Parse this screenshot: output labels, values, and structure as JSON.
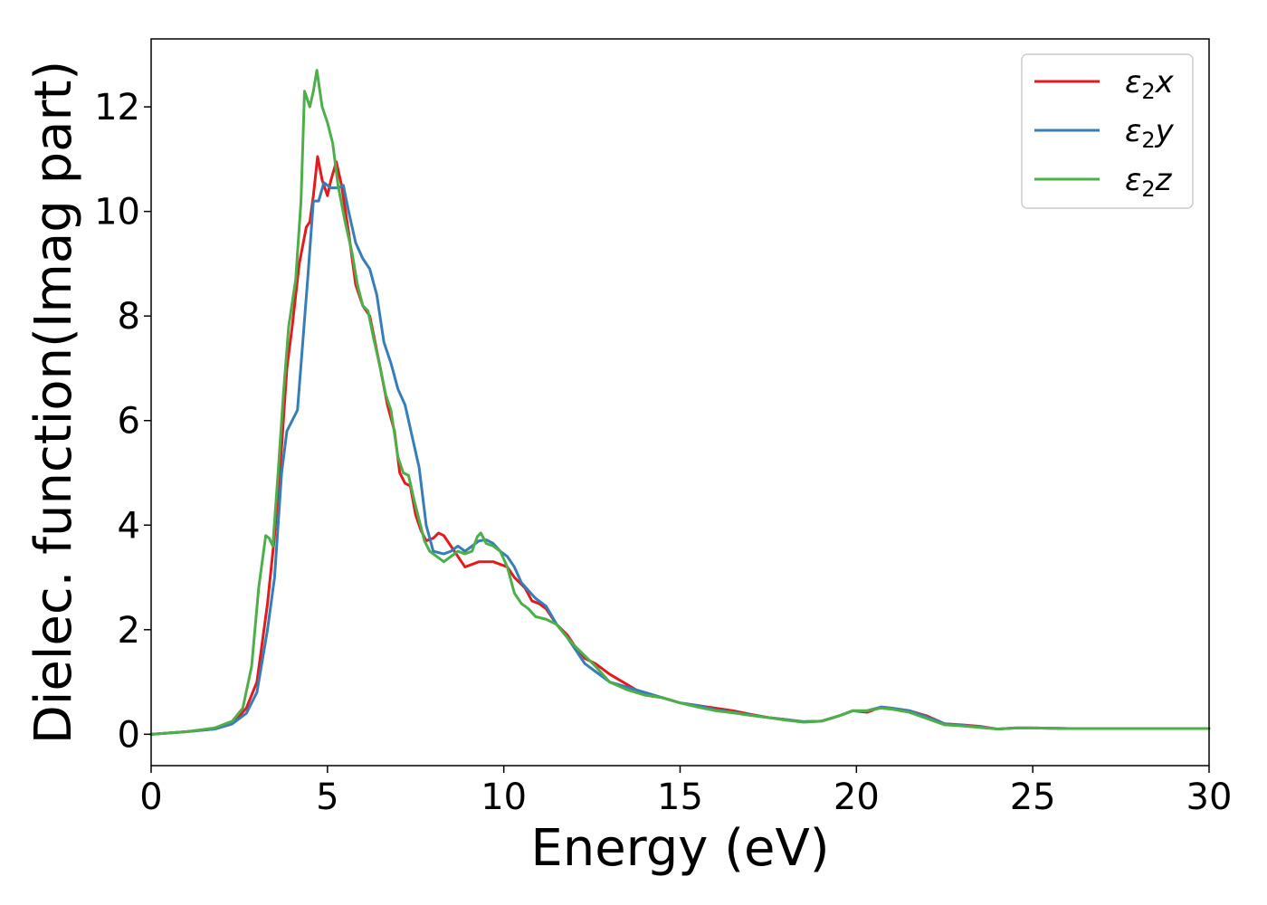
{
  "chart_data": {
    "type": "line",
    "xlabel": "Energy (eV)",
    "ylabel": "Dielec. function(Imag part)",
    "xlim": [
      0,
      30
    ],
    "ylim": [
      -0.6,
      13.3
    ],
    "xticks": [
      0,
      5,
      10,
      15,
      20,
      25,
      30
    ],
    "yticks": [
      0,
      2,
      4,
      6,
      8,
      10,
      12
    ],
    "grid": false,
    "legend_position": "top-right",
    "series": [
      {
        "name": "ε₂x",
        "legend_base": "ε",
        "legend_sub": "2",
        "legend_var": "x",
        "color": "#e41a1c",
        "points": [
          [
            0,
            0
          ],
          [
            1,
            0.05
          ],
          [
            1.8,
            0.1
          ],
          [
            2.3,
            0.2
          ],
          [
            2.7,
            0.5
          ],
          [
            3.0,
            1.0
          ],
          [
            3.3,
            2.5
          ],
          [
            3.5,
            3.8
          ],
          [
            3.7,
            5.5
          ],
          [
            3.85,
            7.0
          ],
          [
            4.0,
            7.8
          ],
          [
            4.2,
            9.0
          ],
          [
            4.4,
            9.7
          ],
          [
            4.5,
            9.8
          ],
          [
            4.6,
            10.3
          ],
          [
            4.72,
            11.05
          ],
          [
            4.85,
            10.6
          ],
          [
            5.0,
            10.3
          ],
          [
            5.1,
            10.6
          ],
          [
            5.25,
            10.95
          ],
          [
            5.4,
            10.5
          ],
          [
            5.6,
            9.6
          ],
          [
            5.8,
            8.6
          ],
          [
            6.0,
            8.2
          ],
          [
            6.2,
            8.0
          ],
          [
            6.35,
            7.5
          ],
          [
            6.5,
            7.0
          ],
          [
            6.7,
            6.3
          ],
          [
            6.9,
            5.8
          ],
          [
            7.05,
            5.0
          ],
          [
            7.2,
            4.8
          ],
          [
            7.35,
            4.75
          ],
          [
            7.5,
            4.2
          ],
          [
            7.65,
            3.9
          ],
          [
            7.8,
            3.7
          ],
          [
            8.0,
            3.75
          ],
          [
            8.15,
            3.85
          ],
          [
            8.3,
            3.8
          ],
          [
            8.5,
            3.6
          ],
          [
            8.7,
            3.4
          ],
          [
            8.9,
            3.2
          ],
          [
            9.1,
            3.25
          ],
          [
            9.3,
            3.3
          ],
          [
            9.5,
            3.3
          ],
          [
            9.7,
            3.3
          ],
          [
            9.9,
            3.25
          ],
          [
            10.1,
            3.2
          ],
          [
            10.3,
            3.0
          ],
          [
            10.6,
            2.8
          ],
          [
            10.8,
            2.55
          ],
          [
            11.0,
            2.5
          ],
          [
            11.2,
            2.4
          ],
          [
            11.5,
            2.1
          ],
          [
            11.8,
            1.9
          ],
          [
            12.0,
            1.7
          ],
          [
            12.3,
            1.45
          ],
          [
            12.6,
            1.35
          ],
          [
            13.0,
            1.15
          ],
          [
            13.5,
            0.95
          ],
          [
            14.0,
            0.75
          ],
          [
            14.5,
            0.7
          ],
          [
            15.0,
            0.6
          ],
          [
            15.5,
            0.55
          ],
          [
            16.0,
            0.5
          ],
          [
            16.5,
            0.45
          ],
          [
            17.0,
            0.38
          ],
          [
            17.5,
            0.32
          ],
          [
            18.0,
            0.28
          ],
          [
            18.5,
            0.24
          ],
          [
            19.0,
            0.25
          ],
          [
            19.5,
            0.35
          ],
          [
            19.9,
            0.45
          ],
          [
            20.3,
            0.42
          ],
          [
            20.7,
            0.52
          ],
          [
            21.0,
            0.5
          ],
          [
            21.5,
            0.45
          ],
          [
            22.0,
            0.35
          ],
          [
            22.5,
            0.2
          ],
          [
            23.0,
            0.18
          ],
          [
            23.5,
            0.15
          ],
          [
            24.0,
            0.1
          ],
          [
            24.5,
            0.12
          ],
          [
            25.0,
            0.12
          ],
          [
            26.0,
            0.11
          ],
          [
            27.0,
            0.11
          ],
          [
            28.0,
            0.11
          ],
          [
            29.0,
            0.11
          ],
          [
            30.0,
            0.11
          ]
        ]
      },
      {
        "name": "ε₂y",
        "legend_base": "ε",
        "legend_sub": "2",
        "legend_var": "y",
        "color": "#377eb8",
        "points": [
          [
            0,
            0
          ],
          [
            1,
            0.05
          ],
          [
            1.8,
            0.1
          ],
          [
            2.3,
            0.2
          ],
          [
            2.7,
            0.4
          ],
          [
            3.0,
            0.8
          ],
          [
            3.3,
            2.0
          ],
          [
            3.5,
            3.0
          ],
          [
            3.7,
            5.0
          ],
          [
            3.85,
            5.8
          ],
          [
            4.0,
            6.0
          ],
          [
            4.15,
            6.2
          ],
          [
            4.3,
            7.5
          ],
          [
            4.45,
            8.8
          ],
          [
            4.6,
            10.2
          ],
          [
            4.75,
            10.2
          ],
          [
            4.9,
            10.55
          ],
          [
            5.1,
            10.45
          ],
          [
            5.3,
            10.45
          ],
          [
            5.45,
            10.5
          ],
          [
            5.6,
            10.0
          ],
          [
            5.8,
            9.4
          ],
          [
            6.0,
            9.1
          ],
          [
            6.2,
            8.9
          ],
          [
            6.4,
            8.4
          ],
          [
            6.6,
            7.5
          ],
          [
            6.8,
            7.1
          ],
          [
            7.0,
            6.6
          ],
          [
            7.2,
            6.3
          ],
          [
            7.4,
            5.7
          ],
          [
            7.6,
            5.1
          ],
          [
            7.8,
            4.0
          ],
          [
            8.0,
            3.5
          ],
          [
            8.3,
            3.45
          ],
          [
            8.5,
            3.5
          ],
          [
            8.7,
            3.6
          ],
          [
            8.9,
            3.5
          ],
          [
            9.1,
            3.6
          ],
          [
            9.3,
            3.7
          ],
          [
            9.5,
            3.72
          ],
          [
            9.7,
            3.65
          ],
          [
            9.9,
            3.5
          ],
          [
            10.1,
            3.4
          ],
          [
            10.3,
            3.2
          ],
          [
            10.5,
            2.9
          ],
          [
            10.7,
            2.75
          ],
          [
            10.9,
            2.6
          ],
          [
            11.2,
            2.45
          ],
          [
            11.5,
            2.1
          ],
          [
            11.8,
            1.85
          ],
          [
            12.0,
            1.65
          ],
          [
            12.3,
            1.35
          ],
          [
            12.6,
            1.2
          ],
          [
            13.0,
            1.0
          ],
          [
            13.5,
            0.9
          ],
          [
            14.0,
            0.8
          ],
          [
            14.5,
            0.7
          ],
          [
            15.0,
            0.6
          ],
          [
            15.5,
            0.55
          ],
          [
            16.0,
            0.47
          ],
          [
            16.5,
            0.42
          ],
          [
            17.0,
            0.37
          ],
          [
            17.5,
            0.32
          ],
          [
            18.0,
            0.28
          ],
          [
            18.5,
            0.24
          ],
          [
            19.0,
            0.25
          ],
          [
            19.5,
            0.35
          ],
          [
            19.9,
            0.45
          ],
          [
            20.3,
            0.45
          ],
          [
            20.7,
            0.52
          ],
          [
            21.0,
            0.5
          ],
          [
            21.5,
            0.45
          ],
          [
            22.0,
            0.33
          ],
          [
            22.5,
            0.2
          ],
          [
            23.0,
            0.17
          ],
          [
            23.5,
            0.14
          ],
          [
            24.0,
            0.1
          ],
          [
            24.5,
            0.12
          ],
          [
            25.0,
            0.12
          ],
          [
            26.0,
            0.11
          ],
          [
            27.0,
            0.11
          ],
          [
            28.0,
            0.11
          ],
          [
            29.0,
            0.11
          ],
          [
            30.0,
            0.11
          ]
        ]
      },
      {
        "name": "ε₂z",
        "legend_base": "ε",
        "legend_sub": "2",
        "legend_var": "z",
        "color": "#4daf4a",
        "points": [
          [
            0,
            0
          ],
          [
            1,
            0.05
          ],
          [
            1.8,
            0.12
          ],
          [
            2.3,
            0.25
          ],
          [
            2.6,
            0.5
          ],
          [
            2.85,
            1.3
          ],
          [
            3.05,
            2.8
          ],
          [
            3.25,
            3.8
          ],
          [
            3.35,
            3.75
          ],
          [
            3.45,
            3.6
          ],
          [
            3.6,
            5.0
          ],
          [
            3.75,
            6.5
          ],
          [
            3.9,
            7.8
          ],
          [
            4.1,
            8.7
          ],
          [
            4.25,
            10.2
          ],
          [
            4.35,
            12.3
          ],
          [
            4.5,
            12.0
          ],
          [
            4.6,
            12.3
          ],
          [
            4.7,
            12.7
          ],
          [
            4.85,
            12.0
          ],
          [
            5.0,
            11.7
          ],
          [
            5.15,
            11.3
          ],
          [
            5.3,
            10.5
          ],
          [
            5.5,
            9.8
          ],
          [
            5.7,
            9.2
          ],
          [
            5.85,
            8.6
          ],
          [
            6.0,
            8.2
          ],
          [
            6.15,
            8.1
          ],
          [
            6.3,
            7.6
          ],
          [
            6.5,
            7.0
          ],
          [
            6.65,
            6.5
          ],
          [
            6.8,
            6.2
          ],
          [
            7.0,
            5.3
          ],
          [
            7.15,
            5.0
          ],
          [
            7.3,
            4.95
          ],
          [
            7.45,
            4.5
          ],
          [
            7.6,
            4.1
          ],
          [
            7.75,
            3.7
          ],
          [
            7.9,
            3.5
          ],
          [
            8.1,
            3.4
          ],
          [
            8.3,
            3.3
          ],
          [
            8.5,
            3.4
          ],
          [
            8.7,
            3.5
          ],
          [
            8.9,
            3.45
          ],
          [
            9.1,
            3.5
          ],
          [
            9.25,
            3.78
          ],
          [
            9.35,
            3.85
          ],
          [
            9.5,
            3.65
          ],
          [
            9.7,
            3.6
          ],
          [
            9.9,
            3.5
          ],
          [
            10.1,
            3.2
          ],
          [
            10.3,
            2.7
          ],
          [
            10.5,
            2.5
          ],
          [
            10.7,
            2.4
          ],
          [
            10.9,
            2.25
          ],
          [
            11.2,
            2.2
          ],
          [
            11.5,
            2.1
          ],
          [
            11.8,
            1.85
          ],
          [
            12.0,
            1.7
          ],
          [
            12.3,
            1.5
          ],
          [
            12.6,
            1.3
          ],
          [
            13.0,
            1.0
          ],
          [
            13.5,
            0.85
          ],
          [
            14.0,
            0.75
          ],
          [
            14.5,
            0.7
          ],
          [
            15.0,
            0.6
          ],
          [
            15.5,
            0.52
          ],
          [
            16.0,
            0.45
          ],
          [
            16.5,
            0.41
          ],
          [
            17.0,
            0.36
          ],
          [
            17.5,
            0.32
          ],
          [
            18.0,
            0.27
          ],
          [
            18.5,
            0.23
          ],
          [
            19.0,
            0.25
          ],
          [
            19.5,
            0.35
          ],
          [
            19.9,
            0.45
          ],
          [
            20.3,
            0.45
          ],
          [
            20.7,
            0.5
          ],
          [
            21.0,
            0.48
          ],
          [
            21.5,
            0.42
          ],
          [
            22.0,
            0.3
          ],
          [
            22.5,
            0.18
          ],
          [
            23.0,
            0.16
          ],
          [
            23.5,
            0.13
          ],
          [
            24.0,
            0.1
          ],
          [
            24.5,
            0.12
          ],
          [
            25.0,
            0.12
          ],
          [
            26.0,
            0.11
          ],
          [
            27.0,
            0.11
          ],
          [
            28.0,
            0.11
          ],
          [
            29.0,
            0.11
          ],
          [
            30.0,
            0.11
          ]
        ]
      }
    ]
  }
}
